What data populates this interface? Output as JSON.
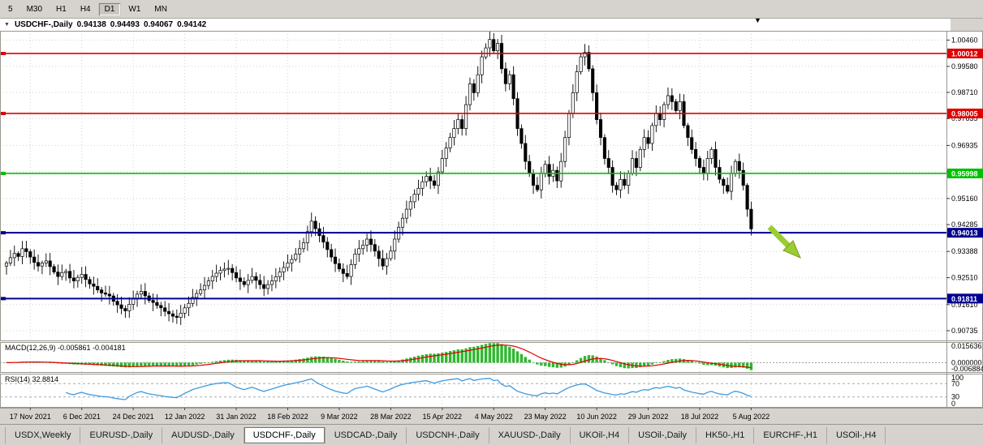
{
  "toolbar": {
    "timeframes": [
      {
        "label": "5"
      },
      {
        "label": "M30"
      },
      {
        "label": "H1"
      },
      {
        "label": "H4"
      },
      {
        "label": "D1"
      },
      {
        "label": "W1"
      },
      {
        "label": "MN"
      }
    ],
    "active": "D1"
  },
  "chart_header": {
    "menu_icon": "chart-dropdown",
    "symbol": "USDCHF-,Daily",
    "open": "0.94138",
    "high": "0.94493",
    "low": "0.94067",
    "close": "0.94142"
  },
  "chart_data": {
    "type": "candlestick",
    "symbol": "USDCHF-",
    "period": "Daily",
    "price_max": 1.00771,
    "price_min": 0.9041,
    "price_axis_labels": [
      "1.00460",
      "0.99580",
      "0.98710",
      "0.97835",
      "0.96935",
      "0.96060",
      "0.95160",
      "0.94285",
      "0.93388",
      "0.92510",
      "0.91610",
      "0.90735"
    ],
    "x_tick_labels": [
      "17 Nov 2021",
      "6 Dec 2021",
      "24 Dec 2021",
      "12 Jan 2022",
      "31 Jan 2022",
      "18 Feb 2022",
      "9 Mar 2022",
      "28 Mar 2022",
      "15 Apr 2022",
      "4 May 2022",
      "23 May 2022",
      "10 Jun 2022",
      "29 Jun 2022",
      "18 Jul 2022",
      "5 Aug 2022"
    ],
    "x_tick_first_index": 6,
    "x_tick_step": 13,
    "first_open": 0.929,
    "closes": [
      0.93,
      0.9318,
      0.9332,
      0.9322,
      0.9348,
      0.9338,
      0.932,
      0.9302,
      0.929,
      0.93,
      0.9307,
      0.9288,
      0.927,
      0.9255,
      0.9268,
      0.9272,
      0.925,
      0.924,
      0.9252,
      0.9262,
      0.9245,
      0.923,
      0.9222,
      0.921,
      0.92,
      0.9196,
      0.919,
      0.9172,
      0.916,
      0.9148,
      0.914,
      0.9162,
      0.918,
      0.9196,
      0.9205,
      0.919,
      0.9175,
      0.9168,
      0.9158,
      0.915,
      0.9138,
      0.913,
      0.9122,
      0.9118,
      0.9132,
      0.915,
      0.9165,
      0.9185,
      0.9198,
      0.921,
      0.9225,
      0.924,
      0.9255,
      0.9266,
      0.9275,
      0.928,
      0.9282,
      0.9268,
      0.925,
      0.9238,
      0.9228,
      0.9242,
      0.9255,
      0.9242,
      0.9228,
      0.9215,
      0.9228,
      0.924,
      0.9254,
      0.927,
      0.9285,
      0.93,
      0.9312,
      0.933,
      0.9348,
      0.9368,
      0.9405,
      0.944,
      0.9415,
      0.9392,
      0.937,
      0.9345,
      0.932,
      0.9298,
      0.928,
      0.9265,
      0.9255,
      0.9295,
      0.933,
      0.9348,
      0.936,
      0.938,
      0.9362,
      0.934,
      0.9315,
      0.929,
      0.9315,
      0.934,
      0.938,
      0.942,
      0.945,
      0.948,
      0.9505,
      0.953,
      0.955,
      0.9572,
      0.959,
      0.9575,
      0.956,
      0.9605,
      0.965,
      0.9685,
      0.972,
      0.975,
      0.978,
      0.975,
      0.983,
      0.99,
      0.987,
      0.993,
      0.999,
      1.002,
      1.0048,
      1.001,
      1.0035,
      0.995,
      0.99,
      0.993,
      0.985,
      0.975,
      0.97,
      0.964,
      0.96,
      0.956,
      0.9545,
      0.96,
      0.963,
      0.959,
      0.961,
      0.9575,
      0.964,
      0.972,
      0.98,
      0.987,
      0.994,
      0.999,
      1.0005,
      0.995,
      0.987,
      0.978,
      0.972,
      0.965,
      0.962,
      0.956,
      0.9545,
      0.958,
      0.956,
      0.96,
      0.965,
      0.962,
      0.968,
      0.972,
      0.97,
      0.976,
      0.98,
      0.978,
      0.983,
      0.986,
      0.984,
      0.981,
      0.984,
      0.976,
      0.972,
      0.968,
      0.965,
      0.962,
      0.96,
      0.965,
      0.968,
      0.962,
      0.958,
      0.956,
      0.954,
      0.96,
      0.964,
      0.961,
      0.956,
      0.948,
      0.9414
    ],
    "candle_up_color": "#ffffff",
    "candle_down_color": "#000000",
    "grid_color": "#d2d2d2",
    "hlines": [
      {
        "price": 1.00012,
        "label": "1.00012",
        "color": "#e00000"
      },
      {
        "price": 0.98005,
        "label": "0.98005",
        "color": "#e00000"
      },
      {
        "price": 0.95998,
        "label": "0.95998",
        "color": "#00c000"
      },
      {
        "price": 0.94013,
        "label": "0.94013",
        "color": "#000090"
      },
      {
        "price": 0.91811,
        "label": "0.91811",
        "color": "#000090"
      }
    ],
    "indicators": {
      "macd": {
        "label": "MACD(12,26,9) -0.005861 -0.004181",
        "fast": 12,
        "slow": 26,
        "signal": 9,
        "axis_labels": [
          "0.015636",
          "0.000000",
          "-0.006884"
        ],
        "histogram_color": "#2eb82e",
        "signal_color": "#e00000"
      },
      "rsi": {
        "label": "RSI(14) 32.8814",
        "period": 14,
        "levels": [
          70,
          30
        ],
        "axis_labels": [
          "100",
          "70",
          "30",
          "0"
        ],
        "line_color": "#3e9adf"
      }
    },
    "annotation": {
      "type": "arrow",
      "direction": "down-right",
      "color": "#9acd32"
    }
  },
  "tabs": {
    "items": [
      {
        "label": "USDX,Weekly"
      },
      {
        "label": "EURUSD-,Daily"
      },
      {
        "label": "AUDUSD-,Daily"
      },
      {
        "label": "USDCHF-,Daily"
      },
      {
        "label": "USDCAD-,Daily"
      },
      {
        "label": "USDCNH-,Daily"
      },
      {
        "label": "XAUUSD-,Daily"
      },
      {
        "label": "UKOil-,H4"
      },
      {
        "label": "USOil-,Daily"
      },
      {
        "label": "HK50-,H1"
      },
      {
        "label": "EURCHF-,H1"
      },
      {
        "label": "USOil-,H4"
      }
    ],
    "active_index": 3
  }
}
